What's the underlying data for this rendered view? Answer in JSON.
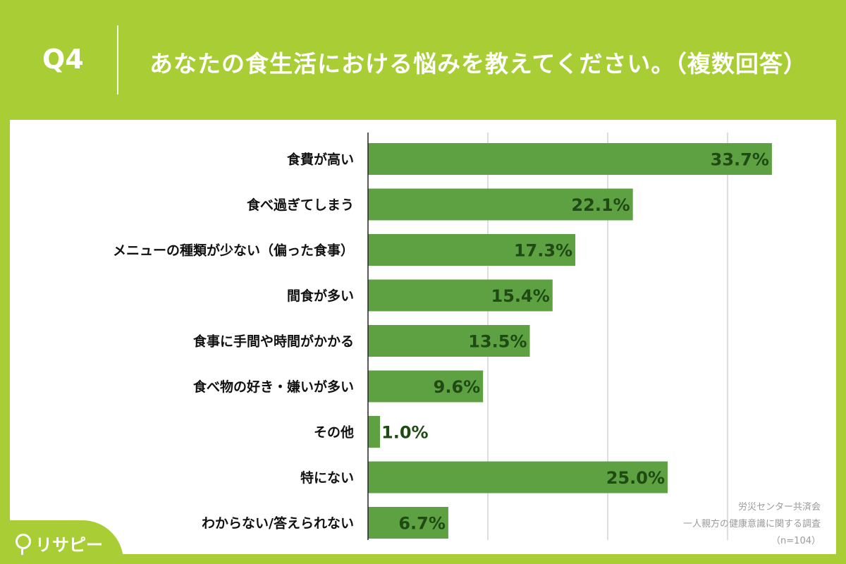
{
  "header": {
    "question_number": "Q4",
    "question_text": "あなたの食生活における悩みを教えてください。（複数回答）"
  },
  "source": {
    "organization": "労災センター共済会",
    "survey": "一人親方の健康意識に関する調査",
    "sample": "（n=104）"
  },
  "logo": {
    "text": "リサピー",
    "icon": "pin-icon"
  },
  "colors": {
    "background": "#a9ce35",
    "bar": "#5ea142",
    "value_text": "#1f4a14"
  },
  "chart_data": {
    "type": "bar",
    "orientation": "horizontal",
    "categories": [
      "食費が高い",
      "食べ過ぎてしまう",
      "メニューの種類が少ない（偏った食事）",
      "間食が多い",
      "食事に手間や時間がかかる",
      "食べ物の好き・嫌いが多い",
      "その他",
      "特にない",
      "わからない/答えられない"
    ],
    "values": [
      33.7,
      22.1,
      17.3,
      15.4,
      13.5,
      9.6,
      1.0,
      25.0,
      6.7
    ],
    "value_labels": [
      "33.7%",
      "22.1%",
      "17.3%",
      "15.4%",
      "13.5%",
      "9.6%",
      "1.0%",
      "25.0%",
      "6.7%"
    ],
    "xlim": [
      0,
      40
    ],
    "grid": true
  }
}
